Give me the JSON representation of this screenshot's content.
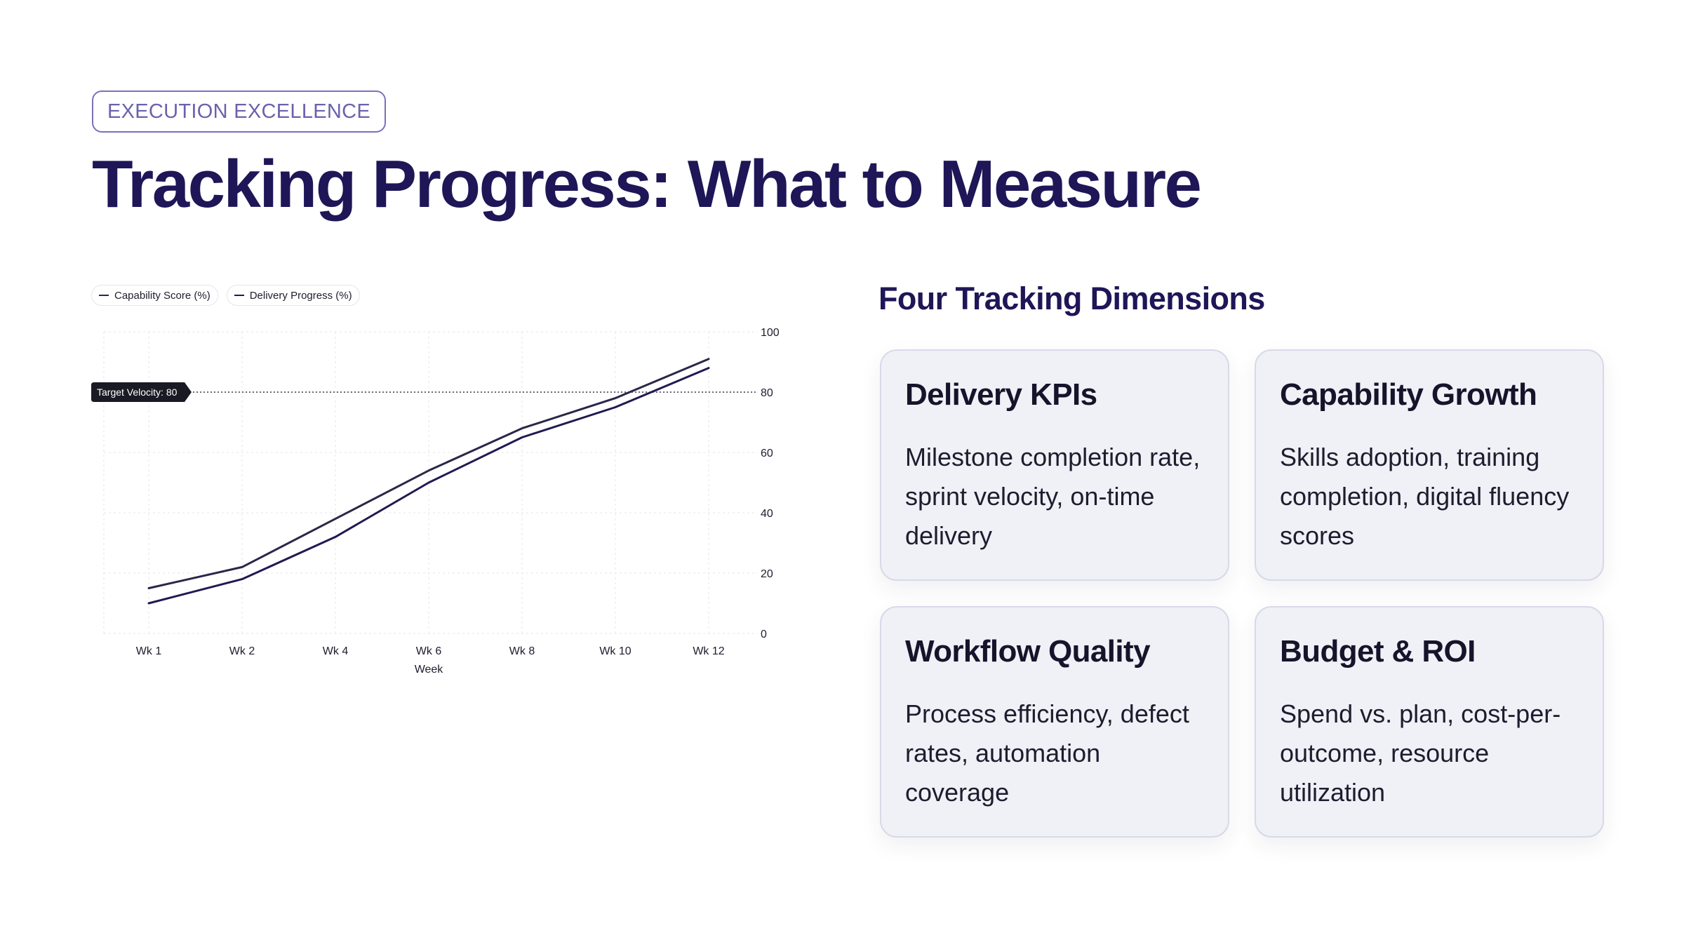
{
  "slide": {
    "eyebrow": "EXECUTION EXCELLENCE",
    "title": "Tracking Progress: What to Measure"
  },
  "chart_data": {
    "type": "line",
    "categories": [
      "Wk 1",
      "Wk 2",
      "Wk 4",
      "Wk 6",
      "Wk 8",
      "Wk 10",
      "Wk 12"
    ],
    "series": [
      {
        "name": "Capability Score (%)",
        "color": "#2a2748",
        "values": [
          15,
          22,
          38,
          54,
          68,
          78,
          91
        ]
      },
      {
        "name": "Delivery Progress (%)",
        "color": "#1f1a52",
        "values": [
          10,
          18,
          32,
          50,
          65,
          75,
          88
        ]
      }
    ],
    "xlabel": "Week",
    "ylabel": "",
    "ylim": [
      0,
      100
    ],
    "yticks": [
      "0",
      "20",
      "40",
      "60",
      "80",
      "100"
    ],
    "y_axis_side": "right",
    "grid": true,
    "legend": "top-left",
    "reference_line": {
      "value": 80,
      "label": "Target Velocity: 80",
      "color": "#1a1a24"
    }
  },
  "dimensions": {
    "heading": "Four Tracking Dimensions",
    "cards": [
      {
        "title": "Delivery KPIs",
        "body": "Milestone completion rate, sprint velocity, on-time delivery"
      },
      {
        "title": "Capability Growth",
        "body": "Skills adoption, training completion, digital fluency scores"
      },
      {
        "title": "Workflow Quality",
        "body": "Process efficiency, defect rates, automation coverage"
      },
      {
        "title": "Budget & ROI",
        "body": "Spend vs. plan, cost-per-outcome, resource utilization"
      }
    ]
  }
}
